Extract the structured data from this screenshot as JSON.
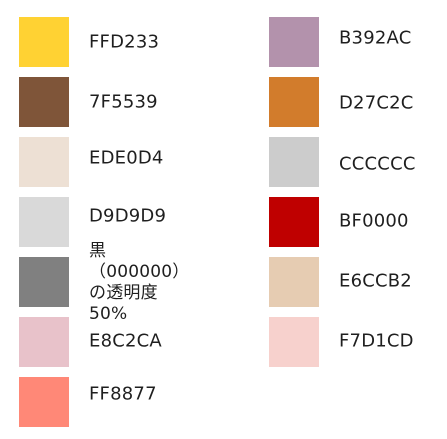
{
  "swatches": [
    {
      "color": "#FFD233",
      "label": "FFD233"
    },
    {
      "color": "#7F5539",
      "label": "7F5539"
    },
    {
      "color": "#EDE0D4",
      "label": "EDE0D4"
    },
    {
      "color": "#D9D9D9",
      "label": "D9D9D9"
    },
    {
      "color": "#808080",
      "label": "黒（000000）\nの透明度50%"
    },
    {
      "color": "#E8C2CA",
      "label": "E8C2CA"
    },
    {
      "color": "#FF8877",
      "label": "FF8877"
    },
    {
      "color": "#B392AC",
      "label": "B392AC"
    },
    {
      "color": "#D27C2C",
      "label": "D27C2C"
    },
    {
      "color": "#CCCCCC",
      "label": "CCCCCC"
    },
    {
      "color": "#BF0000",
      "label": "BF0000"
    },
    {
      "color": "#E6CCB2",
      "label": "E6CCB2"
    },
    {
      "color": "#F7D1CD",
      "label": "F7D1CD"
    }
  ]
}
